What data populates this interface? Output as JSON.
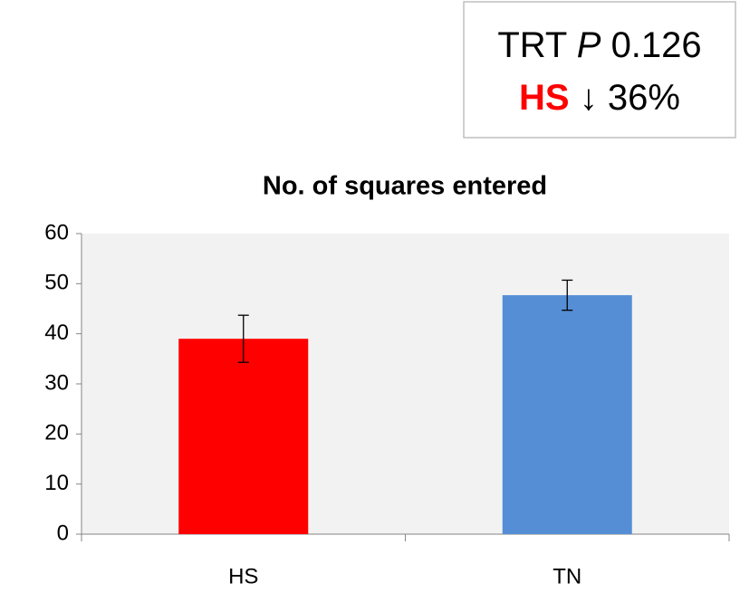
{
  "chart_data": {
    "type": "bar",
    "title": "No. of squares entered",
    "categories": [
      "HS",
      "TN"
    ],
    "values": [
      39,
      47.7
    ],
    "errors": [
      4.7,
      3
    ],
    "colors": [
      "#ff0000",
      "#558ed5"
    ],
    "ylim": [
      0,
      60
    ],
    "yticks": [
      0,
      10,
      20,
      30,
      40,
      50,
      60
    ],
    "grid": false,
    "annotation": {
      "line1": [
        "TRT",
        "P",
        "0.126"
      ],
      "line2": [
        "HS",
        "↓",
        "36%"
      ]
    }
  }
}
